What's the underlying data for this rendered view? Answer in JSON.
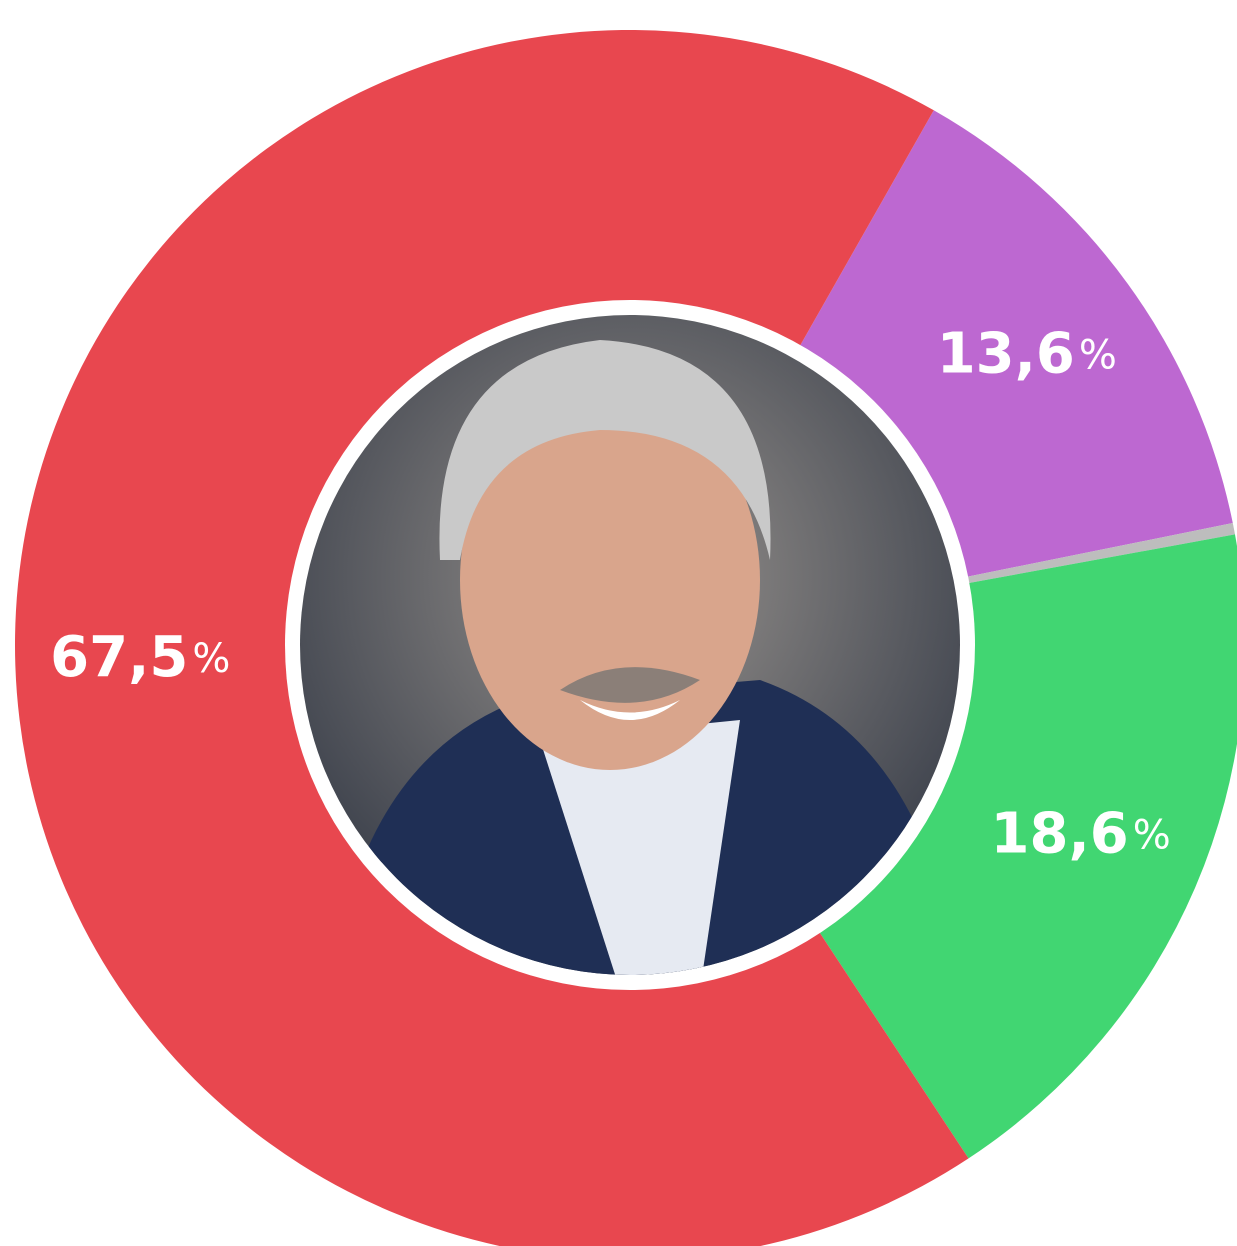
{
  "chart_data": {
    "type": "donut",
    "values": [
      13.6,
      0.3,
      18.6,
      67.5
    ],
    "value_labels": [
      "13,6",
      null,
      "18,6",
      "67,5"
    ],
    "unit": "%",
    "colors": [
      "#bd68d1",
      "#bdbdbd",
      "#41d672",
      "#e8474f"
    ]
  }
}
